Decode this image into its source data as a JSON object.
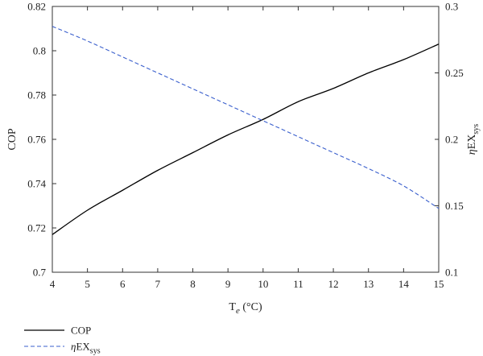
{
  "chart_data": {
    "type": "line",
    "xlabel": "T",
    "xlabel_sub": "e",
    "xlabel_unit": " (°C)",
    "ylabel_left": "COP",
    "ylabel_right_prefix": "η",
    "ylabel_right_main": "EX",
    "ylabel_right_sub": "sys",
    "x_ticks": [
      "4",
      "5",
      "6",
      "7",
      "8",
      "9",
      "10",
      "11",
      "12",
      "13",
      "14",
      "15"
    ],
    "y_left_ticks": [
      "0.7",
      "0.72",
      "0.74",
      "0.76",
      "0.78",
      "0.8",
      "0.82"
    ],
    "y_right_ticks": [
      "0.1",
      "0.15",
      "0.2",
      "0.25",
      "0.3"
    ],
    "xlim": [
      4,
      15
    ],
    "ylim_left": [
      0.7,
      0.82
    ],
    "ylim_right": [
      0.1,
      0.3
    ],
    "grid": false,
    "legend_position": "bottom-left",
    "series": [
      {
        "name": "COP",
        "axis": "left",
        "color": "#000000",
        "dash": "solid",
        "x": [
          4,
          5,
          6,
          7,
          8,
          9,
          10,
          11,
          12,
          13,
          14,
          15
        ],
        "values": [
          0.717,
          0.728,
          0.737,
          0.746,
          0.754,
          0.762,
          0.769,
          0.777,
          0.783,
          0.79,
          0.796,
          0.803
        ]
      },
      {
        "name_prefix": "η",
        "name_main": "EX",
        "name_sub": "sys",
        "axis": "right",
        "color": "#3a5fcd",
        "dash": "dashed",
        "x": [
          4,
          5,
          6,
          7,
          8,
          9,
          10,
          11,
          12,
          13,
          14,
          15
        ],
        "values": [
          0.285,
          0.274,
          0.262,
          0.25,
          0.238,
          0.226,
          0.214,
          0.202,
          0.19,
          0.178,
          0.165,
          0.148
        ]
      }
    ]
  }
}
